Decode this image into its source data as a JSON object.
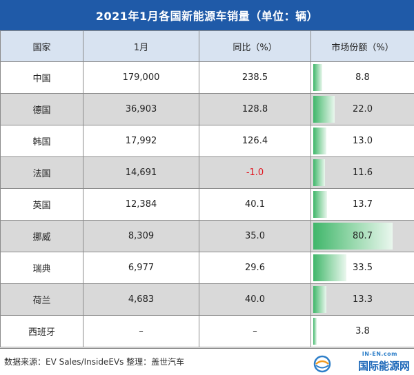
{
  "title": "2021年1月各国新能源车销量（单位：辆）",
  "headers": [
    "国家",
    "1月",
    "同比（%）",
    "市场份额（%）"
  ],
  "rows": [
    {
      "country": "中国",
      "jan": "179,000",
      "yoy": "238.5",
      "share": "8.8",
      "negative": false
    },
    {
      "country": "德国",
      "jan": "36,903",
      "yoy": "128.8",
      "share": "22.0",
      "negative": false
    },
    {
      "country": "韩国",
      "jan": "17,992",
      "yoy": "126.4",
      "share": "13.0",
      "negative": false
    },
    {
      "country": "法国",
      "jan": "14,691",
      "yoy": "-1.0",
      "share": "11.6",
      "negative": true
    },
    {
      "country": "英国",
      "jan": "12,384",
      "yoy": "40.1",
      "share": "13.7",
      "negative": false
    },
    {
      "country": "挪威",
      "jan": "8,309",
      "yoy": "35.0",
      "share": "80.7",
      "negative": false
    },
    {
      "country": "瑞典",
      "jan": "6,977",
      "yoy": "29.6",
      "share": "33.5",
      "negative": false
    },
    {
      "country": "荷兰",
      "jan": "4,683",
      "yoy": "40.0",
      "share": "13.3",
      "negative": false
    },
    {
      "country": "西班牙",
      "jan": "–",
      "yoy": "–",
      "share": "3.8",
      "negative": false
    }
  ],
  "share_max": 100,
  "source": "数据来源：EV Sales/InsideEVs 整理：盖世汽车",
  "logo": {
    "small": "IN-EN.com",
    "main": "国际能源网"
  },
  "colors": {
    "header": "#1f5aa8",
    "negative": "#e0141e",
    "bar": "#3fb66a"
  }
}
